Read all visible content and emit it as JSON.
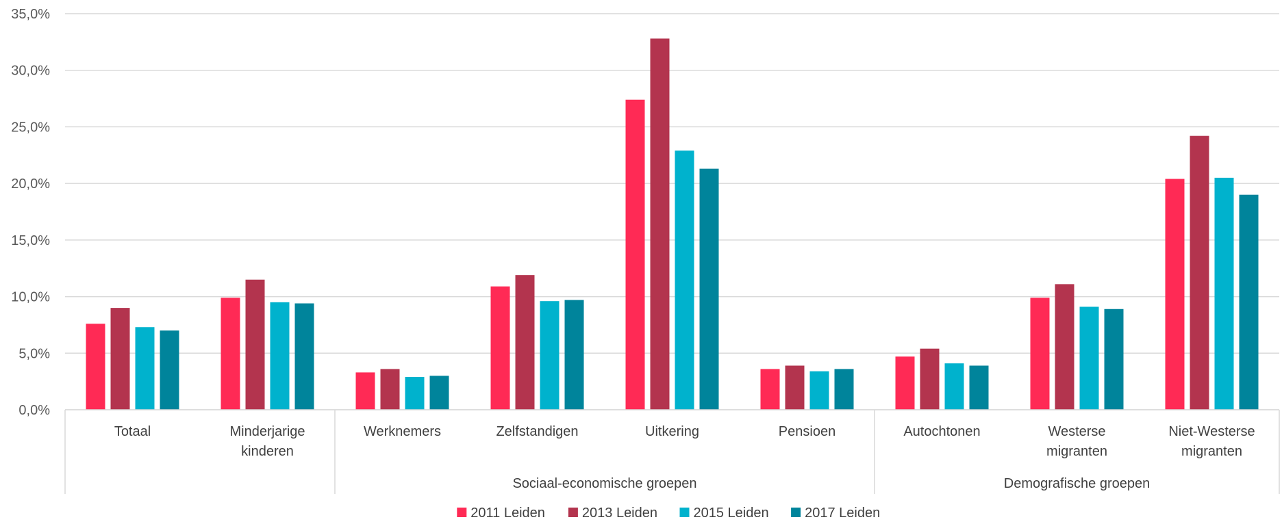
{
  "chart_data": {
    "type": "bar",
    "categories": [
      [
        "Totaal"
      ],
      [
        "Minderjarige",
        "kinderen"
      ],
      [
        "Werknemers"
      ],
      [
        "Zelfstandigen"
      ],
      [
        "Uitkering"
      ],
      [
        "Pensioen"
      ],
      [
        "Autochtonen"
      ],
      [
        "Westerse",
        "migranten"
      ],
      [
        "Niet-Westerse",
        "migranten"
      ]
    ],
    "groups": [
      {
        "label": "",
        "from": 0,
        "to": 1
      },
      {
        "label": "Sociaal-economische groepen",
        "from": 2,
        "to": 5
      },
      {
        "label": "Demografische groepen",
        "from": 6,
        "to": 8
      }
    ],
    "series": [
      {
        "name": "2011 Leiden",
        "color": "#FF2A55",
        "values": [
          7.6,
          9.9,
          3.3,
          10.9,
          27.4,
          3.6,
          4.7,
          9.9,
          20.4
        ]
      },
      {
        "name": "2013 Leiden",
        "color": "#B3344E",
        "values": [
          9.0,
          11.5,
          3.6,
          11.9,
          32.8,
          3.9,
          5.4,
          11.1,
          24.2
        ]
      },
      {
        "name": "2015 Leiden",
        "color": "#00B2CD",
        "values": [
          7.3,
          9.5,
          2.9,
          9.6,
          22.9,
          3.4,
          4.1,
          9.1,
          20.5
        ]
      },
      {
        "name": "2017 Leiden",
        "color": "#00849B",
        "values": [
          7.0,
          9.4,
          3.0,
          9.7,
          21.3,
          3.6,
          3.9,
          8.9,
          19.0
        ]
      }
    ],
    "yticks": [
      "0,0%",
      "5,0%",
      "10,0%",
      "15,0%",
      "20,0%",
      "25,0%",
      "30,0%",
      "35,0%"
    ],
    "ylim": [
      0,
      35
    ],
    "grid": true,
    "legend": "bottom"
  }
}
